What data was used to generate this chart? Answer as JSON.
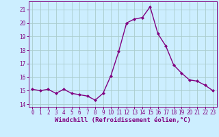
{
  "x": [
    0,
    1,
    2,
    3,
    4,
    5,
    6,
    7,
    8,
    9,
    10,
    11,
    12,
    13,
    14,
    15,
    16,
    17,
    18,
    19,
    20,
    21,
    22,
    23
  ],
  "y": [
    15.1,
    15.0,
    15.1,
    14.8,
    15.1,
    14.8,
    14.7,
    14.6,
    14.3,
    14.8,
    16.1,
    17.9,
    20.0,
    20.3,
    20.4,
    21.2,
    19.2,
    18.3,
    16.9,
    16.3,
    15.8,
    15.7,
    15.4,
    15.0
  ],
  "line_color": "#800080",
  "marker": "D",
  "marker_size": 2.0,
  "line_width": 1.0,
  "xlabel": "Windchill (Refroidissement éolien,°C)",
  "xlim": [
    -0.5,
    23.5
  ],
  "ylim": [
    13.8,
    21.6
  ],
  "yticks": [
    14,
    15,
    16,
    17,
    18,
    19,
    20,
    21
  ],
  "xticks": [
    0,
    1,
    2,
    3,
    4,
    5,
    6,
    7,
    8,
    9,
    10,
    11,
    12,
    13,
    14,
    15,
    16,
    17,
    18,
    19,
    20,
    21,
    22,
    23
  ],
  "bg_color": "#cceeff",
  "grid_color": "#aacccc",
  "spine_color": "#800080",
  "tick_color": "#800080",
  "label_color": "#800080",
  "xlabel_fontsize": 6.5,
  "tick_fontsize": 5.5
}
